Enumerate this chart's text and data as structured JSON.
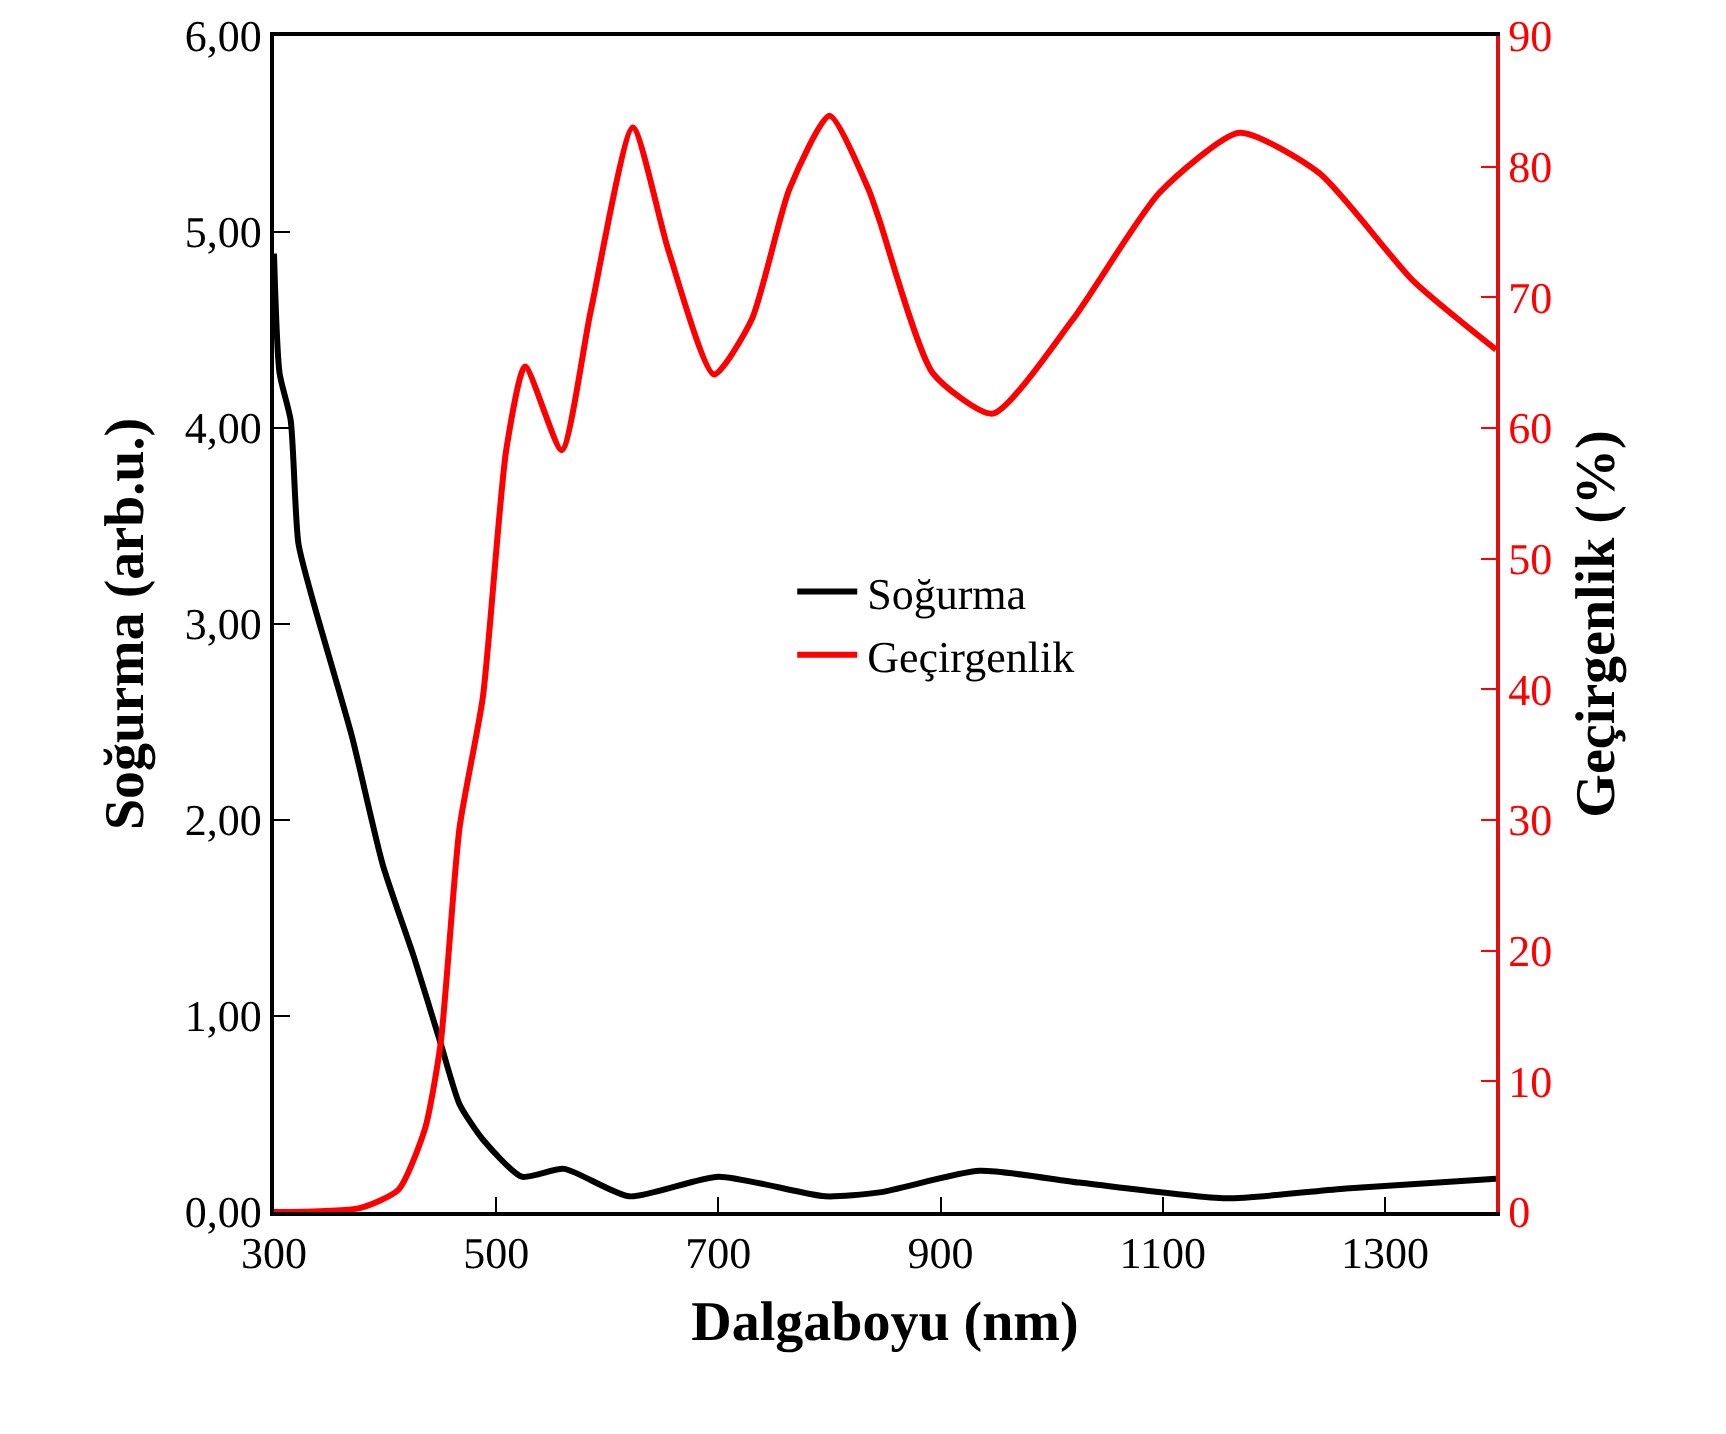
{
  "chart_data": {
    "type": "line",
    "xlabel": "Dalgaboyu (nm)",
    "ylabel": "Soğurma (arb.u.)",
    "y2label": "Geçirgenlik (%)",
    "xlim": [
      300,
      1400
    ],
    "xticks": [
      300,
      500,
      700,
      900,
      1100,
      1300
    ],
    "ylim": [
      0,
      6
    ],
    "yticks": [
      {
        "value": 0,
        "label": "0,00"
      },
      {
        "value": 1,
        "label": "1,00"
      },
      {
        "value": 2,
        "label": "2,00"
      },
      {
        "value": 3,
        "label": "3,00"
      },
      {
        "value": 4,
        "label": "4,00"
      },
      {
        "value": 5,
        "label": "5,00"
      },
      {
        "value": 6,
        "label": "6,00"
      }
    ],
    "y2lim": [
      0,
      90
    ],
    "y2ticks": [
      0,
      10,
      20,
      30,
      40,
      50,
      60,
      70,
      80,
      90
    ],
    "grid": false,
    "legend": "center",
    "marker": "none",
    "line_style": "solid",
    "series": [
      {
        "name": "Soğurma",
        "color": "#000000",
        "x": [
          300,
          305,
          315,
          322,
          336,
          370,
          398,
          426,
          450,
          467,
          488,
          523,
          561,
          620,
          700,
          796,
          845,
          935,
          1025,
          1157,
          1265,
          1400
        ],
        "values": [
          4.89,
          4.28,
          4.04,
          3.41,
          3.1,
          2.43,
          1.77,
          1.3,
          0.86,
          0.55,
          0.37,
          0.18,
          0.22,
          0.08,
          0.18,
          0.08,
          0.1,
          0.21,
          0.15,
          0.07,
          0.12,
          0.17
        ]
      },
      {
        "name": "Geçirgenlik",
        "color": "#ff0000",
        "axis": "y2",
        "x": [
          300,
          377,
          412,
          436,
          450,
          467,
          488,
          509,
          526,
          559,
          585,
          623,
          655,
          696,
          730,
          764,
          800,
          835,
          845,
          893,
          947,
          1019,
          1097,
          1169,
          1241,
          1325,
          1400
        ],
        "values": [
          0,
          0.3,
          1.7,
          6.4,
          12.9,
          29.4,
          39.4,
          58.3,
          64.7,
          58.3,
          68.9,
          83,
          73.6,
          64.1,
          68.3,
          78.3,
          83.9,
          78.3,
          75.9,
          64.2,
          61.1,
          68.3,
          78,
          82.6,
          79.5,
          71.3,
          66
        ]
      }
    ]
  }
}
